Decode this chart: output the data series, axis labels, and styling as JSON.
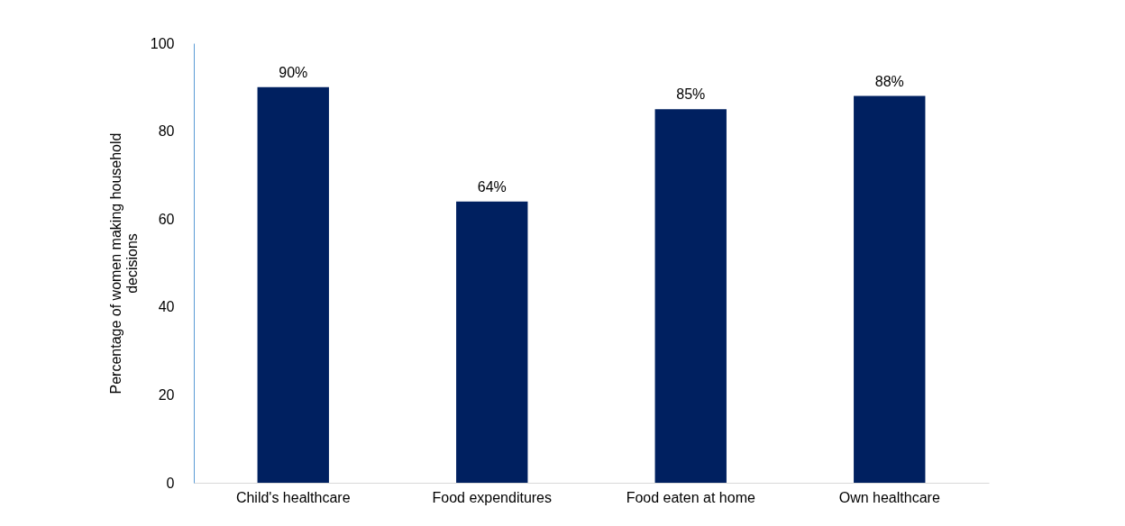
{
  "chart_data": {
    "type": "bar",
    "ylabel": "Percentage of women making household decisions",
    "categories": [
      "Child's healthcare",
      "Food expenditures",
      "Food eaten at home",
      "Own healthcare"
    ],
    "values": [
      90,
      64,
      85,
      88
    ],
    "value_labels": [
      "90%",
      "64%",
      "85%",
      "88%"
    ],
    "color": "#002060",
    "ylim": [
      0,
      100
    ],
    "yticks": [
      0,
      20,
      40,
      60,
      80,
      100
    ],
    "grid": false
  }
}
